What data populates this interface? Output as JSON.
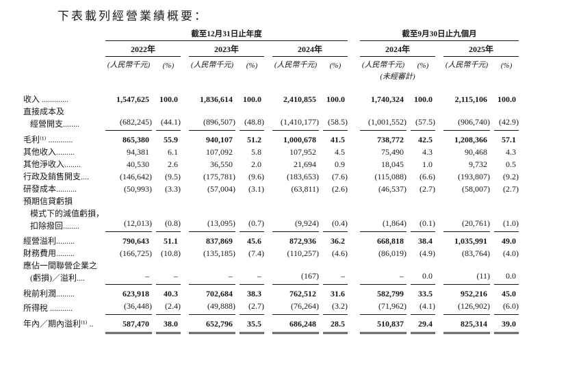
{
  "title": "下表載列經營業績概要：",
  "table": {
    "periods": [
      "截至12月31日止年度",
      "截至9月30日止九個月"
    ],
    "years": [
      "2022年",
      "2023年",
      "2024年",
      "2024年",
      "2025年"
    ],
    "unit": "(人民幣千元)",
    "pct": "(%)",
    "unaudited": "(未經審計)",
    "rows": [
      {
        "label_lines": [
          {
            "text": "收入 .............",
            "indent": false
          }
        ],
        "values": [
          "1,547,625",
          "100.0",
          "1,836,614",
          "100.0",
          "2,410,855",
          "100.0",
          "1,740,324",
          "100.0",
          "2,115,106",
          "100.0"
        ],
        "bold": true,
        "rule_below": false,
        "double_rule_below": false
      },
      {
        "label_lines": [
          {
            "text": "直接成本及",
            "indent": false
          },
          {
            "text": "經營開支........",
            "indent": true
          }
        ],
        "values": [
          "(682,245)",
          "(44.1)",
          "(896,507)",
          "(48.8)",
          "(1,410,177)",
          "(58.5)",
          "(1,001,552)",
          "(57.5)",
          "(906,740)",
          "(42.9)"
        ],
        "bold": false,
        "rule_below": true,
        "double_rule_below": false
      },
      {
        "label_lines": [
          {
            "text": "毛利⁽¹⁾ ............",
            "indent": false
          }
        ],
        "values": [
          "865,380",
          "55.9",
          "940,107",
          "51.2",
          "1,000,678",
          "41.5",
          "738,772",
          "42.5",
          "1,208,366",
          "57.1"
        ],
        "bold": true,
        "rule_below": false,
        "double_rule_below": false
      },
      {
        "label_lines": [
          {
            "text": "其他收入.........",
            "indent": false
          }
        ],
        "values": [
          "94,381",
          "6.1",
          "107,092",
          "5.8",
          "107,952",
          "4.5",
          "75,490",
          "4.3",
          "90,468",
          "4.3"
        ],
        "bold": false,
        "rule_below": false,
        "double_rule_below": false
      },
      {
        "label_lines": [
          {
            "text": "其他淨收入........",
            "indent": false
          }
        ],
        "values": [
          "40,530",
          "2.6",
          "36,550",
          "2.0",
          "21,694",
          "0.9",
          "18,045",
          "1.0",
          "9,732",
          "0.5"
        ],
        "bold": false,
        "rule_below": false,
        "double_rule_below": false
      },
      {
        "label_lines": [
          {
            "text": "行政及銷售開支....",
            "indent": false
          }
        ],
        "values": [
          "(146,642)",
          "(9.5)",
          "(175,781)",
          "(9.6)",
          "(183,653)",
          "(7.6)",
          "(115,088)",
          "(6.6)",
          "(193,807)",
          "(9.2)"
        ],
        "bold": false,
        "rule_below": false,
        "double_rule_below": false
      },
      {
        "label_lines": [
          {
            "text": "研發成本..........",
            "indent": false
          }
        ],
        "values": [
          "(50,993)",
          "(3.3)",
          "(57,004)",
          "(3.1)",
          "(63,811)",
          "(2.6)",
          "(46,537)",
          "(2.7)",
          "(58,007)",
          "(2.7)"
        ],
        "bold": false,
        "rule_below": false,
        "double_rule_below": false
      },
      {
        "label_lines": [
          {
            "text": "預期信貸虧損",
            "indent": false
          },
          {
            "text": "模式下的減值虧損，",
            "indent": true
          },
          {
            "text": "扣除撥回........",
            "indent": true
          }
        ],
        "values": [
          "(12,013)",
          "(0.8)",
          "(13,095)",
          "(0.7)",
          "(9,924)",
          "(0.4)",
          "(1,864)",
          "(0.1)",
          "(20,761)",
          "(1.0)"
        ],
        "bold": false,
        "rule_below": true,
        "double_rule_below": false
      },
      {
        "label_lines": [
          {
            "text": "經營溢利.........",
            "indent": false
          }
        ],
        "values": [
          "790,643",
          "51.1",
          "837,869",
          "45.6",
          "872,936",
          "36.2",
          "668,818",
          "38.4",
          "1,035,991",
          "49.0"
        ],
        "bold": true,
        "rule_below": false,
        "double_rule_below": false
      },
      {
        "label_lines": [
          {
            "text": "財務費用.........",
            "indent": false
          }
        ],
        "values": [
          "(166,725)",
          "(10.8)",
          "(135,185)",
          "(7.4)",
          "(110,257)",
          "(4.6)",
          "(86,019)",
          "(4.9)",
          "(83,764)",
          "(4.0)"
        ],
        "bold": false,
        "rule_below": false,
        "double_rule_below": false
      },
      {
        "label_lines": [
          {
            "text": "應佔一間聯營企業之",
            "indent": false
          },
          {
            "text": "(虧損)／溢利....",
            "indent": true
          }
        ],
        "values": [
          "–",
          "–",
          "–",
          "–",
          "(167)",
          "–",
          "–",
          "0.0",
          "(11)",
          "0.0"
        ],
        "bold": false,
        "rule_below": true,
        "double_rule_below": false
      },
      {
        "label_lines": [
          {
            "text": "稅前利潤.........",
            "indent": false
          }
        ],
        "values": [
          "623,918",
          "40.3",
          "702,684",
          "38.3",
          "762,512",
          "31.6",
          "582,799",
          "33.5",
          "952,216",
          "45.0"
        ],
        "bold": true,
        "rule_below": false,
        "double_rule_below": false
      },
      {
        "label_lines": [
          {
            "text": "所得稅 ...........",
            "indent": false
          }
        ],
        "values": [
          "(36,448)",
          "(2.4)",
          "(49,888)",
          "(2.7)",
          "(76,264)",
          "(3.2)",
          "(71,962)",
          "(4.1)",
          "(126,902)",
          "(6.0)"
        ],
        "bold": false,
        "rule_below": true,
        "double_rule_below": false
      },
      {
        "label_lines": [
          {
            "text": "年內／期內溢利⁽¹⁾ ..",
            "indent": false
          }
        ],
        "values": [
          "587,470",
          "38.0",
          "652,796",
          "35.5",
          "686,248",
          "28.5",
          "510,837",
          "29.4",
          "825,314",
          "39.0"
        ],
        "bold": true,
        "rule_below": false,
        "double_rule_below": true
      }
    ]
  }
}
